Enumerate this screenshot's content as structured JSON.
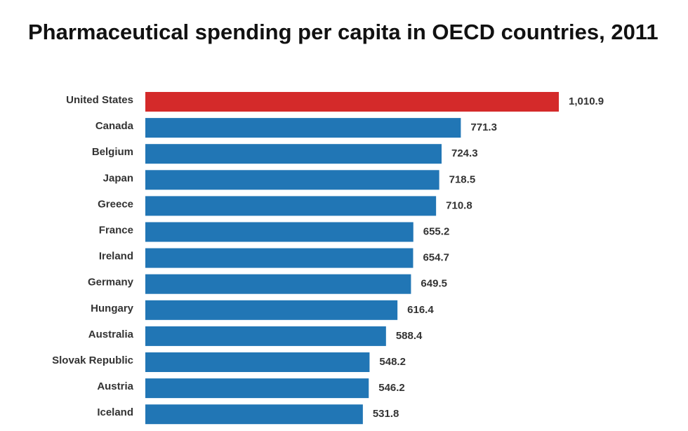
{
  "chart_data": {
    "type": "hbar",
    "title": "Pharmaceutical spending per capita in OECD countries, 2011",
    "categories": [
      "United States",
      "Canada",
      "Belgium",
      "Japan",
      "Greece",
      "France",
      "Ireland",
      "Germany",
      "Hungary",
      "Australia",
      "Slovak Republic",
      "Austria",
      "Iceland"
    ],
    "values": [
      1010.9,
      771.3,
      724.3,
      718.5,
      710.8,
      655.2,
      654.7,
      649.5,
      616.4,
      588.4,
      548.2,
      546.2,
      531.8
    ],
    "value_labels": [
      "1,010.9",
      "771.3",
      "724.3",
      "718.5",
      "710.8",
      "655.2",
      "654.7",
      "649.5",
      "616.4",
      "588.4",
      "548.2",
      "546.2",
      "531.8"
    ],
    "colors": [
      "#d42a2a",
      "#2176b5",
      "#2176b5",
      "#2176b5",
      "#2176b5",
      "#2176b5",
      "#2176b5",
      "#2176b5",
      "#2176b5",
      "#2176b5",
      "#2176b5",
      "#2176b5",
      "#2176b5"
    ]
  }
}
